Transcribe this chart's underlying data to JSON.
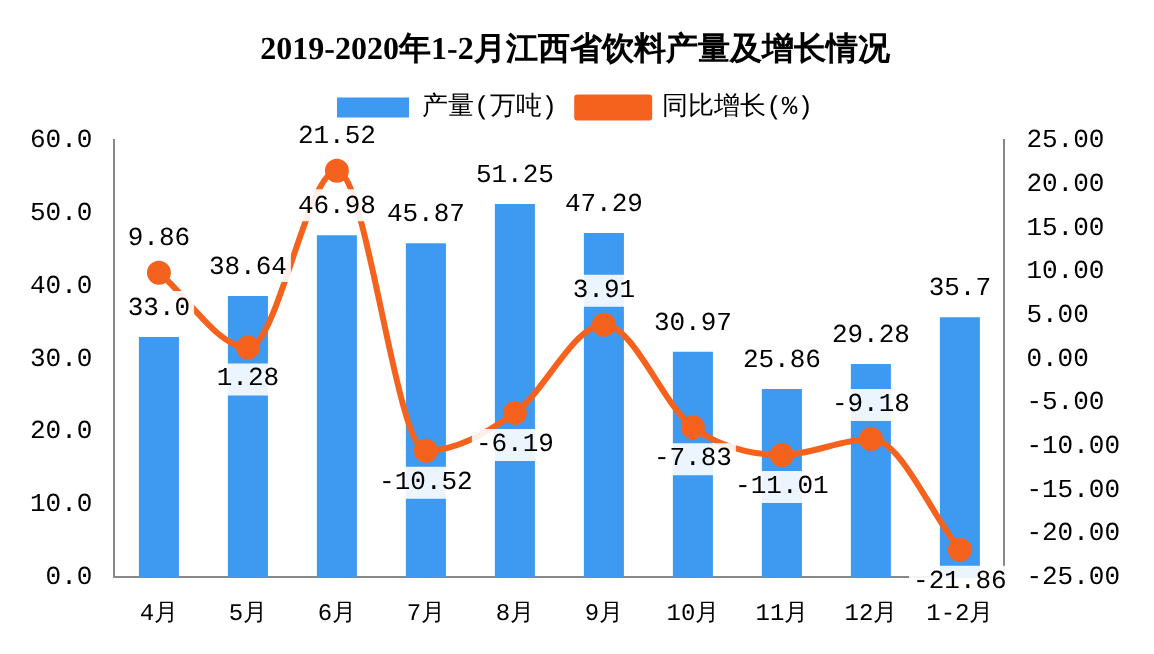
{
  "chart_data": {
    "type": "bar",
    "title": "2019-2020年1-2月江西省饮料产量及增长情况",
    "categories": [
      "4月",
      "5月",
      "6月",
      "7月",
      "8月",
      "9月",
      "10月",
      "11月",
      "12月",
      "1-2月"
    ],
    "series": [
      {
        "name": "产量(万吨)",
        "color": "#3e9af0",
        "values": [
          33.0,
          38.64,
          46.98,
          45.87,
          51.25,
          47.29,
          30.97,
          25.86,
          29.28,
          35.7
        ],
        "value_labels": [
          "33.0",
          "38.64",
          "46.98",
          "45.87",
          "51.25",
          "47.29",
          "30.97",
          "25.86",
          "29.28",
          "35.7"
        ]
      },
      {
        "name": "同比增长(%)",
        "type": "line",
        "axis": "y2",
        "color": "#f4621e",
        "marker": "circle",
        "values": [
          9.86,
          1.28,
          21.52,
          -10.52,
          -6.19,
          3.91,
          -7.83,
          -11.01,
          -9.18,
          -21.86
        ],
        "value_labels": [
          "9.86",
          "1.28",
          "21.52",
          "-10.52",
          "-6.19",
          "3.91",
          "-7.83",
          "-11.01",
          "-9.18",
          "-21.86"
        ]
      }
    ],
    "ylim": [
      0,
      60
    ],
    "yticks": [
      {
        "value": 0,
        "label": "0.0"
      },
      {
        "value": 10,
        "label": "10.0"
      },
      {
        "value": 20,
        "label": "20.0"
      },
      {
        "value": 30,
        "label": "30.0"
      },
      {
        "value": 40,
        "label": "40.0"
      },
      {
        "value": 50,
        "label": "50.0"
      },
      {
        "value": 60,
        "label": "60.0"
      }
    ],
    "y2lim": [
      -25,
      25
    ],
    "y2ticks": [
      {
        "value": -25,
        "label": "-25.00"
      },
      {
        "value": -20,
        "label": "-20.00"
      },
      {
        "value": -15,
        "label": "-15.00"
      },
      {
        "value": -10,
        "label": "-10.00"
      },
      {
        "value": -5,
        "label": "-5.00"
      },
      {
        "value": 0,
        "label": "0.00"
      },
      {
        "value": 5,
        "label": "5.00"
      },
      {
        "value": 10,
        "label": "10.00"
      },
      {
        "value": 15,
        "label": "15.00"
      },
      {
        "value": 20,
        "label": "20.00"
      },
      {
        "value": 25,
        "label": "25.00"
      }
    ],
    "grid": false,
    "legend": "top"
  }
}
